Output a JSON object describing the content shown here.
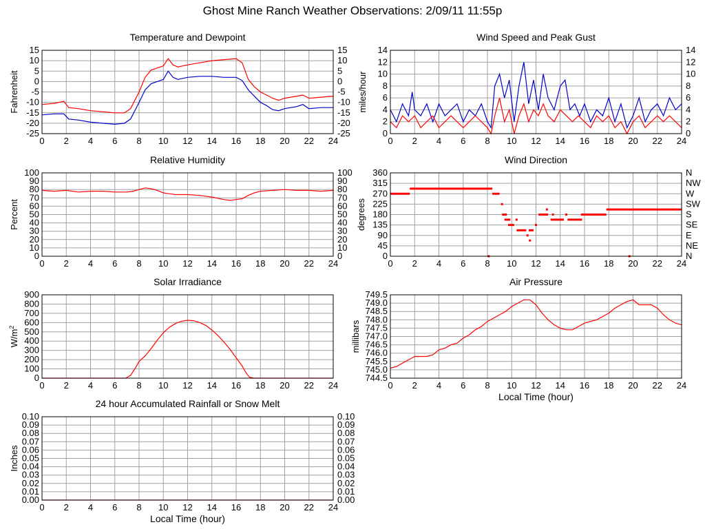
{
  "page_title": "Ghost Mine Ranch Weather Observations: 2/09/11 11:55p",
  "colors": {
    "series_red": "#ff0000",
    "series_blue": "#0000cc",
    "grid": "#a0a0a0",
    "axis": "#000000"
  },
  "chart_data": [
    {
      "id": "temperature",
      "type": "line",
      "title": "Temperature and Dewpoint",
      "xlabel": "",
      "ylabel": "Fahrenheit",
      "xlim": [
        0,
        24
      ],
      "ylim": [
        -25,
        15
      ],
      "xticks": [
        0,
        2,
        4,
        6,
        8,
        10,
        12,
        14,
        16,
        18,
        20,
        22,
        24
      ],
      "yticks": [
        -25,
        -20,
        -15,
        -10,
        -5,
        0,
        5,
        10,
        15
      ],
      "right_yticks": [
        -25,
        -20,
        -15,
        -10,
        -5,
        0,
        5,
        10,
        15
      ],
      "grid": true,
      "series": [
        {
          "color": "#ff0000",
          "x": [
            0,
            1,
            1.8,
            2.2,
            3,
            4,
            5,
            6,
            6.8,
            7.3,
            8,
            8.5,
            9,
            9.5,
            10,
            10.4,
            10.8,
            11.2,
            12,
            13,
            14,
            15,
            16,
            16.5,
            17,
            17.5,
            18,
            18.5,
            19,
            19.5,
            20,
            21,
            21.5,
            22,
            23,
            24
          ],
          "y": [
            -11,
            -10.5,
            -9.5,
            -12.5,
            -13,
            -14,
            -14.5,
            -15,
            -15,
            -13,
            -5,
            2,
            5.5,
            6.5,
            7.5,
            11,
            8,
            7,
            8,
            9,
            10,
            10.5,
            11,
            9,
            1,
            -2.5,
            -5,
            -6.5,
            -8,
            -9,
            -8,
            -7,
            -6.5,
            -8,
            -7.5,
            -7
          ]
        },
        {
          "color": "#0000cc",
          "x": [
            0,
            1,
            1.8,
            2.2,
            3,
            4,
            5,
            6,
            6.8,
            7.3,
            8,
            8.5,
            9,
            9.5,
            10,
            10.4,
            10.8,
            11.2,
            12,
            13,
            14,
            15,
            16,
            16.5,
            17,
            17.5,
            18,
            18.5,
            19,
            19.5,
            20,
            21,
            21.5,
            22,
            23,
            24
          ],
          "y": [
            -16,
            -15.5,
            -15.5,
            -18,
            -18.5,
            -19.5,
            -20,
            -20.5,
            -20,
            -18,
            -10,
            -4,
            -1,
            0,
            1,
            5,
            2,
            1,
            2,
            2.5,
            2.5,
            2,
            2,
            0.5,
            -4,
            -7,
            -10,
            -11.5,
            -13.5,
            -14,
            -13,
            -12,
            -11,
            -13,
            -12.5,
            -12.5
          ]
        }
      ]
    },
    {
      "id": "wind_speed",
      "type": "line",
      "title": "Wind Speed and Peak Gust",
      "xlabel": "",
      "ylabel": "miles/hour",
      "xlim": [
        0,
        24
      ],
      "ylim": [
        0,
        14
      ],
      "xticks": [
        0,
        2,
        4,
        6,
        8,
        10,
        12,
        14,
        16,
        18,
        20,
        22,
        24
      ],
      "yticks": [
        0,
        2,
        4,
        6,
        8,
        10,
        12,
        14
      ],
      "right_yticks": [
        0,
        2,
        4,
        6,
        8,
        10,
        12,
        14
      ],
      "grid": true,
      "series": [
        {
          "color": "#0000cc",
          "x": [
            0,
            0.5,
            1,
            1.5,
            1.8,
            2,
            2.5,
            3,
            3.5,
            4,
            4.5,
            5,
            5.5,
            6,
            6.5,
            7,
            7.5,
            8,
            8.3,
            8.6,
            9,
            9.4,
            9.8,
            10.2,
            10.6,
            11,
            11.4,
            11.8,
            12.2,
            12.6,
            13,
            13.5,
            14,
            14.4,
            14.8,
            15.2,
            15.6,
            16,
            16.5,
            17,
            17.5,
            18,
            18.5,
            19,
            19.5,
            20,
            20.5,
            21,
            21.5,
            22,
            22.5,
            23,
            23.5,
            24
          ],
          "y": [
            4,
            2,
            5,
            3,
            7,
            4,
            3,
            5,
            2,
            5,
            3,
            4,
            5,
            2,
            4,
            3,
            5,
            2,
            1,
            8,
            10,
            6,
            9,
            2,
            8,
            12,
            5,
            9,
            4,
            10,
            6,
            4,
            8,
            9,
            4,
            5,
            3,
            5,
            2,
            4,
            3,
            6,
            2,
            5,
            1,
            3,
            6,
            2,
            4,
            5,
            3,
            6,
            4,
            5
          ]
        },
        {
          "color": "#ff0000",
          "x": [
            0,
            0.5,
            1,
            1.5,
            2,
            2.5,
            3,
            3.5,
            4,
            4.5,
            5,
            5.5,
            6,
            6.5,
            7,
            7.5,
            8,
            8.3,
            8.6,
            9,
            9.4,
            9.8,
            10.2,
            10.6,
            11,
            11.4,
            11.8,
            12.2,
            12.6,
            13,
            13.5,
            14,
            14.5,
            15,
            15.5,
            16,
            16.5,
            17,
            17.5,
            18,
            18.5,
            19,
            19.5,
            20,
            20.5,
            21,
            21.5,
            22,
            22.5,
            23,
            23.5,
            24
          ],
          "y": [
            2,
            1,
            3,
            2,
            3,
            1,
            2,
            3,
            1,
            2,
            3,
            2,
            1,
            2,
            3,
            2,
            1,
            0,
            3,
            6,
            2,
            4,
            0,
            3,
            5,
            2,
            4,
            3,
            5,
            3,
            2,
            4,
            3,
            2,
            3,
            2,
            1,
            3,
            2,
            3,
            1,
            2,
            0,
            2,
            3,
            1,
            2,
            3,
            2,
            3,
            2,
            1
          ]
        }
      ]
    },
    {
      "id": "humidity",
      "type": "line",
      "title": "Relative Humidity",
      "xlabel": "",
      "ylabel": "Percent",
      "xlim": [
        0,
        24
      ],
      "ylim": [
        0,
        100
      ],
      "xticks": [
        0,
        2,
        4,
        6,
        8,
        10,
        12,
        14,
        16,
        18,
        20,
        22,
        24
      ],
      "yticks": [
        0,
        10,
        20,
        30,
        40,
        50,
        60,
        70,
        80,
        90,
        100
      ],
      "right_yticks": [
        0,
        10,
        20,
        30,
        40,
        50,
        60,
        70,
        80,
        90,
        100
      ],
      "grid": true,
      "series": [
        {
          "color": "#ff0000",
          "x": [
            0,
            1,
            2,
            3,
            4,
            5,
            6,
            7,
            7.5,
            8,
            8.5,
            9,
            9.5,
            10,
            10.5,
            11,
            12,
            13,
            14,
            15,
            15.5,
            16,
            16.5,
            17,
            17.5,
            18,
            19,
            20,
            21,
            22,
            23,
            24
          ],
          "y": [
            79,
            78,
            79,
            77,
            78,
            78,
            77,
            77,
            78,
            80,
            82,
            81,
            79,
            76,
            75,
            74,
            74,
            73,
            71,
            68,
            67,
            68,
            69,
            73,
            76,
            78,
            79,
            80,
            79,
            79,
            78,
            79
          ]
        }
      ]
    },
    {
      "id": "wind_direction",
      "type": "scatter",
      "title": "Wind Direction",
      "xlabel": "",
      "ylabel": "degrees",
      "xlim": [
        0,
        24
      ],
      "ylim": [
        0,
        360
      ],
      "xticks": [
        0,
        2,
        4,
        6,
        8,
        10,
        12,
        14,
        16,
        18,
        20,
        22,
        24
      ],
      "yticks": [
        0,
        45,
        90,
        135,
        180,
        225,
        270,
        315,
        360
      ],
      "right_yticks": [
        "N",
        "NE",
        "E",
        "SE",
        "S",
        "SW",
        "W",
        "NW",
        "N"
      ],
      "grid": true,
      "series": [
        {
          "color": "#ff0000",
          "segments": [
            [
              0,
              1.6,
              270
            ],
            [
              1.6,
              8.4,
              292
            ],
            [
              8.4,
              9.0,
              270
            ],
            [
              9.2,
              9.6,
              180
            ],
            [
              9.4,
              9.8,
              158
            ],
            [
              9.7,
              10.2,
              135
            ],
            [
              10.4,
              11.2,
              112
            ],
            [
              11.4,
              11.8,
              112
            ],
            [
              12.3,
              13.0,
              180
            ],
            [
              13.2,
              14.3,
              158
            ],
            [
              14.6,
              15.8,
              158
            ],
            [
              15.7,
              17.8,
              180
            ],
            [
              17.8,
              24,
              202
            ]
          ],
          "x": [
            8.1,
            9.2,
            9.5,
            9.8,
            10.4,
            11.3,
            11.5,
            12.0,
            12.3,
            12.9,
            13.4,
            14.5,
            19.7
          ],
          "y": [
            0,
            225,
            180,
            158,
            158,
            90,
            68,
            135,
            180,
            202,
            180,
            180,
            0
          ]
        }
      ]
    },
    {
      "id": "solar",
      "type": "area",
      "title": "Solar Irradiance",
      "xlabel": "",
      "ylabel": "W/m2",
      "xlim": [
        0,
        24
      ],
      "ylim": [
        0,
        900
      ],
      "xticks": [
        0,
        2,
        4,
        6,
        8,
        10,
        12,
        14,
        16,
        18,
        20,
        22,
        24
      ],
      "yticks": [
        0,
        100,
        200,
        300,
        400,
        500,
        600,
        700,
        800,
        900
      ],
      "grid": true,
      "series": [
        {
          "color": "#ff0000",
          "x": [
            0,
            6.9,
            7.3,
            7.7,
            8,
            8.5,
            9,
            9.5,
            10,
            10.5,
            11,
            11.5,
            12,
            12.5,
            13,
            13.5,
            14,
            14.5,
            15,
            15.5,
            16,
            16.5,
            16.8,
            17.1,
            17.5,
            24
          ],
          "y": [
            0,
            0,
            30,
            110,
            180,
            240,
            320,
            410,
            490,
            550,
            590,
            615,
            625,
            620,
            600,
            570,
            520,
            460,
            390,
            310,
            220,
            130,
            60,
            10,
            0,
            0
          ]
        }
      ]
    },
    {
      "id": "pressure",
      "type": "line",
      "title": "Air Pressure",
      "xlabel": "Local Time (hour)",
      "ylabel": "millibars",
      "xlim": [
        0,
        24
      ],
      "ylim": [
        744.5,
        749.5
      ],
      "xticks": [
        0,
        2,
        4,
        6,
        8,
        10,
        12,
        14,
        16,
        18,
        20,
        22,
        24
      ],
      "yticks": [
        "744.5",
        "745.0",
        "745.5",
        "746.0",
        "746.5",
        "747.0",
        "747.5",
        "748.0",
        "748.5",
        "749.0",
        "749.5"
      ],
      "grid": true,
      "series": [
        {
          "color": "#ff0000",
          "x": [
            0,
            0.5,
            1,
            1.5,
            2,
            2.5,
            3,
            3.5,
            4,
            4.5,
            5,
            5.5,
            6,
            6.5,
            7,
            7.5,
            8,
            8.5,
            9,
            9.5,
            10,
            10.5,
            11,
            11.5,
            12,
            12.5,
            13,
            13.5,
            14,
            14.5,
            15,
            15.5,
            16,
            16.5,
            17,
            17.5,
            18,
            18.5,
            19,
            19.5,
            20,
            20.5,
            21,
            21.5,
            22,
            22.5,
            23,
            23.5,
            24
          ],
          "y": [
            745.1,
            745.2,
            745.4,
            745.6,
            745.8,
            745.8,
            745.8,
            745.9,
            746.2,
            746.3,
            746.5,
            746.6,
            746.9,
            747.1,
            747.4,
            747.6,
            747.9,
            748.1,
            748.3,
            748.5,
            748.8,
            749.0,
            749.2,
            749.2,
            748.9,
            748.4,
            748.0,
            747.7,
            747.5,
            747.4,
            747.4,
            747.6,
            747.8,
            747.9,
            748.0,
            748.2,
            748.4,
            748.7,
            748.9,
            749.1,
            749.2,
            748.9,
            748.9,
            748.9,
            748.7,
            748.3,
            748.0,
            747.8,
            747.7
          ]
        }
      ]
    },
    {
      "id": "rainfall",
      "type": "line",
      "title": "24 hour Accumulated Rainfall or Snow Melt",
      "xlabel": "Local Time (hour)",
      "ylabel": "Inches",
      "xlim": [
        0,
        24
      ],
      "ylim": [
        0,
        0.1
      ],
      "xticks": [
        0,
        2,
        4,
        6,
        8,
        10,
        12,
        14,
        16,
        18,
        20,
        22,
        24
      ],
      "yticks": [
        "0.00",
        "0.01",
        "0.02",
        "0.03",
        "0.04",
        "0.05",
        "0.06",
        "0.07",
        "0.08",
        "0.09",
        "0.10"
      ],
      "right_yticks": [
        "0.00",
        "0.01",
        "0.02",
        "0.03",
        "0.04",
        "0.05",
        "0.06",
        "0.07",
        "0.08",
        "0.09",
        "0.10"
      ],
      "grid": true,
      "series": [
        {
          "color": "#ff0000",
          "x": [
            0,
            24
          ],
          "y": [
            0,
            0
          ]
        }
      ]
    }
  ]
}
